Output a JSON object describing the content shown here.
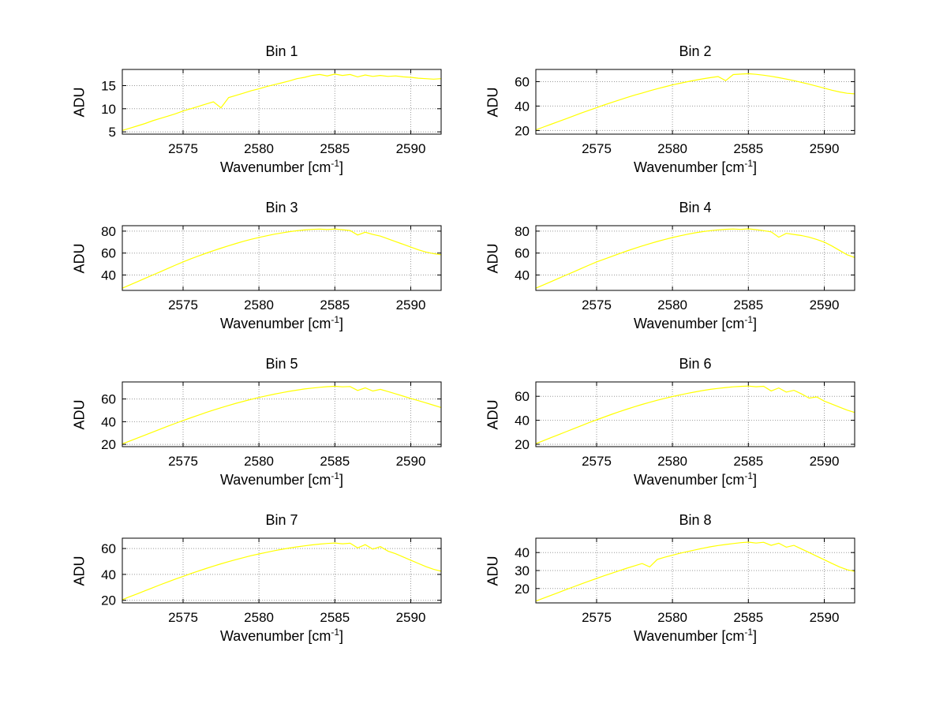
{
  "figure": {
    "background": "#ffffff",
    "line_color": "#ffff00",
    "grid_color": "#999999",
    "axis_color": "#000000"
  },
  "chart_data": {
    "type": "line",
    "xlabel_pre": "Wavenumber [cm",
    "xlabel_sup": "-1",
    "xlabel_post": "]",
    "ylabel": "ADU",
    "xlim": [
      2571,
      2592
    ],
    "xticks": [
      2575,
      2580,
      2585,
      2590
    ],
    "grid": true,
    "legend": false,
    "x": [
      2571,
      2571.5,
      2572,
      2572.5,
      2573,
      2573.5,
      2574,
      2574.5,
      2575,
      2575.5,
      2576,
      2576.5,
      2577,
      2577.5,
      2578,
      2578.5,
      2579,
      2579.5,
      2580,
      2580.5,
      2581,
      2581.5,
      2582,
      2582.5,
      2583,
      2583.5,
      2584,
      2584.5,
      2585,
      2585.5,
      2586,
      2586.5,
      2587,
      2587.5,
      2588,
      2588.5,
      2589,
      2589.5,
      2590,
      2590.5,
      2591,
      2591.5,
      2592
    ],
    "series": [
      {
        "name": "Bin 1",
        "yticks": [
          5,
          10,
          15
        ],
        "ylim": [
          4.5,
          18.5
        ],
        "values": [
          5.3,
          5.8,
          6.3,
          6.8,
          7.4,
          7.9,
          8.4,
          8.9,
          9.5,
          10.0,
          10.5,
          11.0,
          11.5,
          10.2,
          12.4,
          12.9,
          13.4,
          13.9,
          14.3,
          14.8,
          15.2,
          15.6,
          16.0,
          16.5,
          16.8,
          17.2,
          17.4,
          17.1,
          17.5,
          17.2,
          17.4,
          16.9,
          17.3,
          17.0,
          17.2,
          17.0,
          17.1,
          16.9,
          16.8,
          16.6,
          16.5,
          16.4,
          16.5
        ]
      },
      {
        "name": "Bin 2",
        "yticks": [
          20,
          40,
          60
        ],
        "ylim": [
          17,
          70
        ],
        "values": [
          20.5,
          22.8,
          25.1,
          27.4,
          29.7,
          32.0,
          34.3,
          36.5,
          38.7,
          40.9,
          43.0,
          45.0,
          47.0,
          48.9,
          50.7,
          52.5,
          54.2,
          55.8,
          57.3,
          58.7,
          60.0,
          61.2,
          62.3,
          63.3,
          64.2,
          60.8,
          65.8,
          66.2,
          66.5,
          66.0,
          65.3,
          64.4,
          63.3,
          62.1,
          60.8,
          59.4,
          57.9,
          56.3,
          54.7,
          53.0,
          51.6,
          50.5,
          50.0
        ]
      },
      {
        "name": "Bin 3",
        "yticks": [
          40,
          60,
          80
        ],
        "ylim": [
          26,
          85
        ],
        "values": [
          28,
          31,
          34,
          37,
          40,
          43,
          46,
          49,
          52,
          54.7,
          57.3,
          59.8,
          62.2,
          64.5,
          66.7,
          68.8,
          70.8,
          72.6,
          74.3,
          75.8,
          77.2,
          78.4,
          79.5,
          80.4,
          81.1,
          81.6,
          81.9,
          81.5,
          82.0,
          81.3,
          80.6,
          76.5,
          79.0,
          77.0,
          75.5,
          73.0,
          70.5,
          68.0,
          65.5,
          63.0,
          61.0,
          59.5,
          58.5
        ]
      },
      {
        "name": "Bin 4",
        "yticks": [
          40,
          60,
          80
        ],
        "ylim": [
          26,
          85
        ],
        "values": [
          28,
          31,
          34,
          37,
          40,
          43,
          46,
          49,
          52,
          54.5,
          57.0,
          59.5,
          62.0,
          64.3,
          66.5,
          68.6,
          70.6,
          72.5,
          74.2,
          75.8,
          77.2,
          78.5,
          79.6,
          80.5,
          81.2,
          81.7,
          82.0,
          81.6,
          82.1,
          81.4,
          80.5,
          79.4,
          74.5,
          78.0,
          77.0,
          76.0,
          74.5,
          72.5,
          70.0,
          66.5,
          62.5,
          58.5,
          56.0
        ]
      },
      {
        "name": "Bin 5",
        "yticks": [
          20,
          40,
          60
        ],
        "ylim": [
          18,
          75
        ],
        "values": [
          20.5,
          23.0,
          25.6,
          28.2,
          30.8,
          33.4,
          36.0,
          38.5,
          41.0,
          43.4,
          45.7,
          48.0,
          50.2,
          52.3,
          54.3,
          56.2,
          58.0,
          59.7,
          61.3,
          62.8,
          64.2,
          65.5,
          66.7,
          67.8,
          68.8,
          69.6,
          70.3,
          70.8,
          71.2,
          70.7,
          71.0,
          67.5,
          69.8,
          67.0,
          68.5,
          66.5,
          64.5,
          62.5,
          60.5,
          58.5,
          56.5,
          54.5,
          52.5
        ]
      },
      {
        "name": "Bin 6",
        "yticks": [
          20,
          40,
          60
        ],
        "ylim": [
          18,
          72
        ],
        "values": [
          20.5,
          23.0,
          25.5,
          28.0,
          30.5,
          33.0,
          35.5,
          38.0,
          40.4,
          42.7,
          45.0,
          47.2,
          49.3,
          51.3,
          53.2,
          55.0,
          56.7,
          58.3,
          59.8,
          61.2,
          62.5,
          63.7,
          64.8,
          65.8,
          66.6,
          67.3,
          67.9,
          68.3,
          68.6,
          68.0,
          68.4,
          64.5,
          67.0,
          63.5,
          65.0,
          62.0,
          58.5,
          59.5,
          56.0,
          53.5,
          51.0,
          48.5,
          46.5
        ]
      },
      {
        "name": "Bin 7",
        "yticks": [
          20,
          40,
          60
        ],
        "ylim": [
          18,
          68
        ],
        "values": [
          20.5,
          22.8,
          25.1,
          27.4,
          29.7,
          32.0,
          34.2,
          36.4,
          38.5,
          40.6,
          42.6,
          44.5,
          46.4,
          48.2,
          49.9,
          51.5,
          53.0,
          54.5,
          55.8,
          57.1,
          58.3,
          59.4,
          60.4,
          61.3,
          62.1,
          62.8,
          63.4,
          63.9,
          64.3,
          63.7,
          64.1,
          60.5,
          63.0,
          59.5,
          61.5,
          58.0,
          56.0,
          53.5,
          51.0,
          48.5,
          46.0,
          44.0,
          42.5
        ]
      },
      {
        "name": "Bin 8",
        "yticks": [
          20,
          30,
          40
        ],
        "ylim": [
          12,
          48
        ],
        "values": [
          13.0,
          14.6,
          16.2,
          17.8,
          19.4,
          21.0,
          22.6,
          24.1,
          25.6,
          27.1,
          28.5,
          29.9,
          31.3,
          32.6,
          33.9,
          32.0,
          36.2,
          37.4,
          38.5,
          39.6,
          40.6,
          41.5,
          42.4,
          43.2,
          43.9,
          44.5,
          45.0,
          45.5,
          45.8,
          45.3,
          45.7,
          44.0,
          45.2,
          43.0,
          44.0,
          42.0,
          40.0,
          38.0,
          36.0,
          34.0,
          32.0,
          30.5,
          29.5
        ]
      }
    ]
  }
}
